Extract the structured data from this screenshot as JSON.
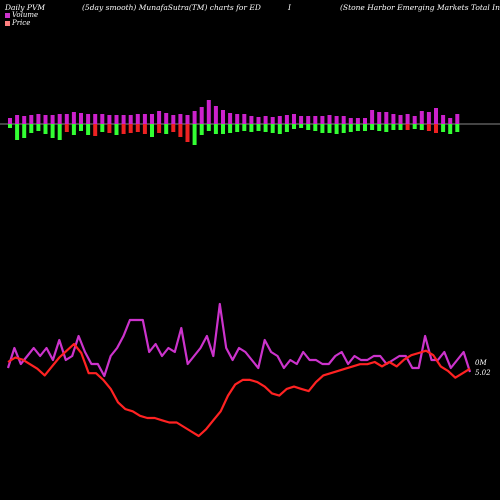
{
  "header": {
    "left": "Daily PVM",
    "middle": "(5day smooth) MunafaSutra(TM) charts for ED",
    "right_marker": "I",
    "right": "(Stone  Harbor Emerging Markets Total Income  Fund) M"
  },
  "legend": [
    {
      "label": "Volume",
      "color": "#cc33cc"
    },
    {
      "label": "Price",
      "color": "#ff8080"
    }
  ],
  "end_labels": {
    "volume": "0M",
    "price": "5.02"
  },
  "colors": {
    "background": "#000000",
    "up": "#cc22cc",
    "down": "#33ff33",
    "red": "#ee2222",
    "volume_line": "#cc33cc",
    "price_line": "#ff2222",
    "axis": "#888888"
  },
  "chart_data": [
    {
      "type": "bar",
      "values": [
        6,
        9,
        8,
        -8,
        -16,
        -14,
        -9,
        -7,
        -10,
        -14,
        -16,
        -8,
        -11,
        -7,
        -11,
        -12,
        -8,
        -9,
        -11,
        -10,
        -9,
        -8,
        -10,
        -13,
        -9,
        -10,
        -8,
        -13,
        -18,
        -21,
        -11,
        -7,
        -10,
        -10,
        -9,
        -8,
        -7,
        -8,
        -7,
        -8,
        -9,
        -10,
        -8,
        -5,
        -4,
        -6,
        -7,
        -9,
        -9,
        -10,
        -9,
        -8,
        -7,
        -7,
        -6,
        -7,
        -8,
        -6,
        -6,
        -6,
        -5,
        -6,
        -7,
        -9,
        -8,
        -10,
        -8,
        -9,
        -8,
        -9,
        -10,
        -8,
        -12,
        -9,
        -10,
        -8,
        -7,
        -6,
        -7,
        -6,
        -6,
        -5,
        -5,
        -6,
        -5,
        -5,
        -6,
        -7,
        -6,
        -7
      ],
      "series": [
        {
          "kind": "up_bars",
          "heights": [
            6,
            9,
            8,
            9,
            10,
            9,
            9,
            10,
            10,
            12,
            11,
            10,
            10,
            10,
            9,
            9,
            9,
            9,
            10,
            10,
            10,
            13,
            11,
            9,
            10,
            9,
            13,
            17,
            24,
            18,
            14,
            11,
            10,
            10,
            8,
            7,
            8,
            7,
            8,
            9,
            10,
            8,
            8,
            8,
            8,
            9,
            8,
            8,
            6,
            6,
            6,
            14,
            12,
            12,
            10,
            9,
            10,
            8,
            13,
            12,
            16,
            9,
            6,
            10
          ]
        },
        {
          "kind": "down_bars",
          "heights": [
            4,
            16,
            14,
            9,
            7,
            10,
            14,
            16,
            8,
            11,
            7,
            11,
            12,
            8,
            9,
            11,
            10,
            9,
            8,
            10,
            13,
            9,
            10,
            8,
            13,
            18,
            21,
            11,
            7,
            10,
            10,
            9,
            8,
            7,
            8,
            7,
            8,
            9,
            10,
            8,
            5,
            4,
            6,
            7,
            9,
            9,
            10,
            9,
            8,
            7,
            7,
            6,
            7,
            8,
            6,
            6,
            6,
            5,
            6,
            7,
            9,
            8,
            10,
            8
          ]
        }
      ]
    },
    {
      "type": "line",
      "series": [
        {
          "name": "Volume",
          "values": [
            0.72,
            0.77,
            0.73,
            0.75,
            0.77,
            0.75,
            0.77,
            0.74,
            0.79,
            0.74,
            0.75,
            0.8,
            0.76,
            0.73,
            0.73,
            0.7,
            0.75,
            0.77,
            0.8,
            0.84,
            0.84,
            0.84,
            0.76,
            0.78,
            0.75,
            0.77,
            0.76,
            0.82,
            0.73,
            0.75,
            0.77,
            0.8,
            0.75,
            0.88,
            0.77,
            0.74,
            0.77,
            0.76,
            0.74,
            0.72,
            0.79,
            0.76,
            0.75,
            0.72,
            0.74,
            0.73,
            0.76,
            0.74,
            0.74,
            0.73,
            0.73,
            0.75,
            0.76,
            0.73,
            0.75,
            0.74,
            0.74,
            0.75,
            0.75,
            0.73,
            0.74,
            0.75,
            0.75,
            0.72,
            0.72,
            0.8,
            0.74,
            0.74,
            0.76,
            0.72,
            0.74,
            0.76,
            0.71
          ]
        },
        {
          "name": "Price",
          "values": [
            5.19,
            5.21,
            5.2,
            5.18,
            5.16,
            5.13,
            5.17,
            5.21,
            5.24,
            5.27,
            5.23,
            5.14,
            5.14,
            5.11,
            5.07,
            5.01,
            4.98,
            4.97,
            4.95,
            4.94,
            4.94,
            4.93,
            4.92,
            4.92,
            4.9,
            4.88,
            4.86,
            4.89,
            4.93,
            4.97,
            5.04,
            5.09,
            5.11,
            5.11,
            5.1,
            5.08,
            5.05,
            5.04,
            5.07,
            5.08,
            5.07,
            5.06,
            5.1,
            5.13,
            5.14,
            5.15,
            5.16,
            5.17,
            5.18,
            5.18,
            5.19,
            5.17,
            5.19,
            5.17,
            5.2,
            5.22,
            5.23,
            5.24,
            5.22,
            5.17,
            5.15,
            5.12,
            5.14,
            5.16
          ]
        }
      ]
    }
  ]
}
